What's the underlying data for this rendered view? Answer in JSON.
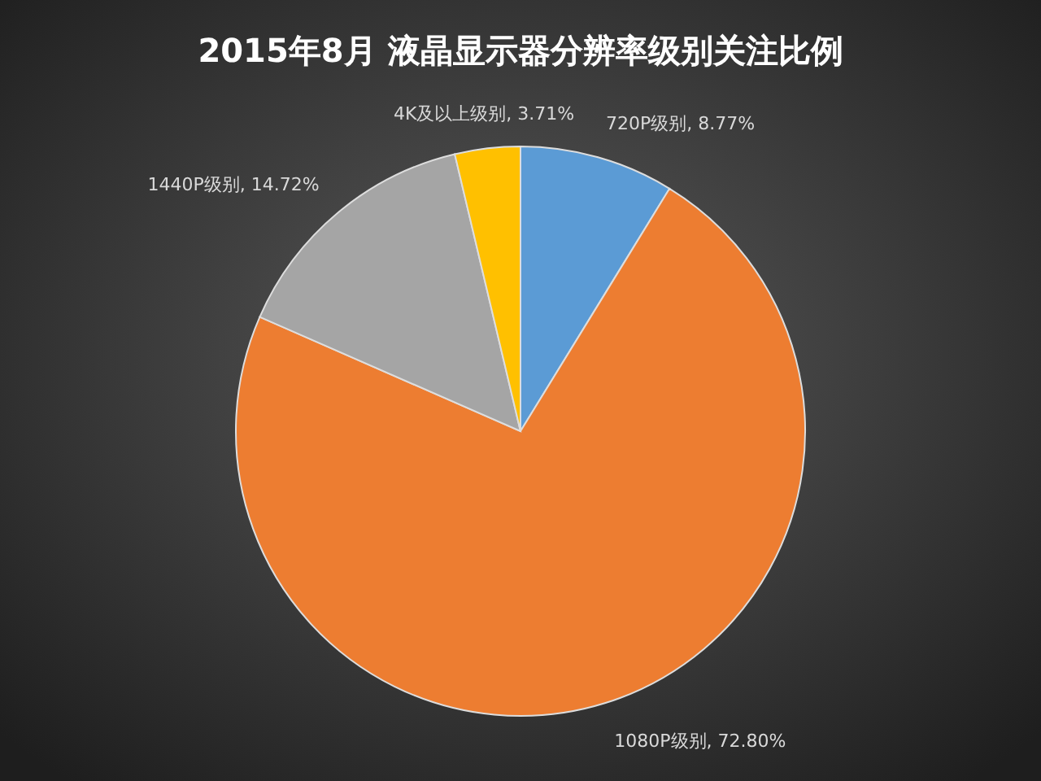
{
  "chart_data": {
    "type": "pie",
    "title": "2015年8月  液晶显示器分辨率级别关注比例",
    "categories": [
      "720P级别",
      "1080P级别",
      "1440P级别",
      "4K及以上级别"
    ],
    "values": [
      8.77,
      72.8,
      14.72,
      3.71
    ],
    "value_labels": [
      "8.77%",
      "72.80%",
      "14.72%",
      "3.71%"
    ],
    "colors": [
      "#5b9bd5",
      "#ed7d31",
      "#a5a5a5",
      "#ffc000"
    ],
    "legend": false
  }
}
